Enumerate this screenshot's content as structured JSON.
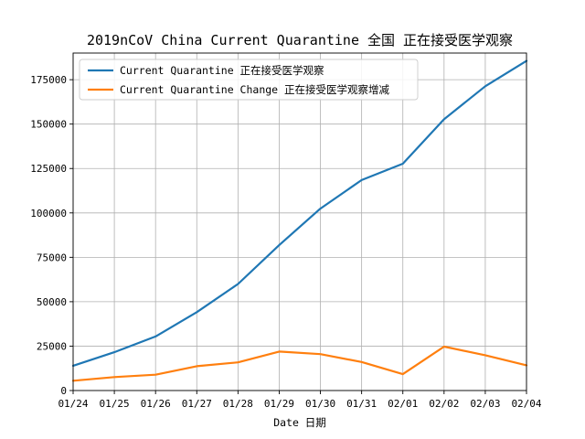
{
  "chart_data": {
    "type": "line",
    "title": "2019nCoV China Current Quarantine 全国 正在接受医学观察",
    "xlabel": "Date 日期",
    "ylabel": "",
    "categories": [
      "01/24",
      "01/25",
      "01/26",
      "01/27",
      "01/28",
      "01/29",
      "01/30",
      "01/31",
      "02/01",
      "02/02",
      "02/03",
      "02/04"
    ],
    "ylim": [
      0,
      190000
    ],
    "yticks": [
      0,
      25000,
      50000,
      75000,
      100000,
      125000,
      150000,
      175000
    ],
    "ytick_labels": [
      "0",
      "25000",
      "50000",
      "75000",
      "100000",
      "125000",
      "150000",
      "175000"
    ],
    "grid": true,
    "legend_position": "upper-left",
    "series": [
      {
        "name": "Current Quarantine 正在接受医学观察",
        "color": "#1f77b4",
        "values": [
          13967,
          21556,
          30453,
          44132,
          59990,
          81947,
          102427,
          118478,
          127675,
          152700,
          171329,
          185555
        ]
      },
      {
        "name": "Current Quarantine Change 正在接受医学观察增减",
        "color": "#ff7f0e",
        "values": [
          5500,
          7589,
          8897,
          13679,
          15858,
          21957,
          20480,
          16051,
          9197,
          24702,
          19858,
          14226
        ]
      }
    ]
  }
}
